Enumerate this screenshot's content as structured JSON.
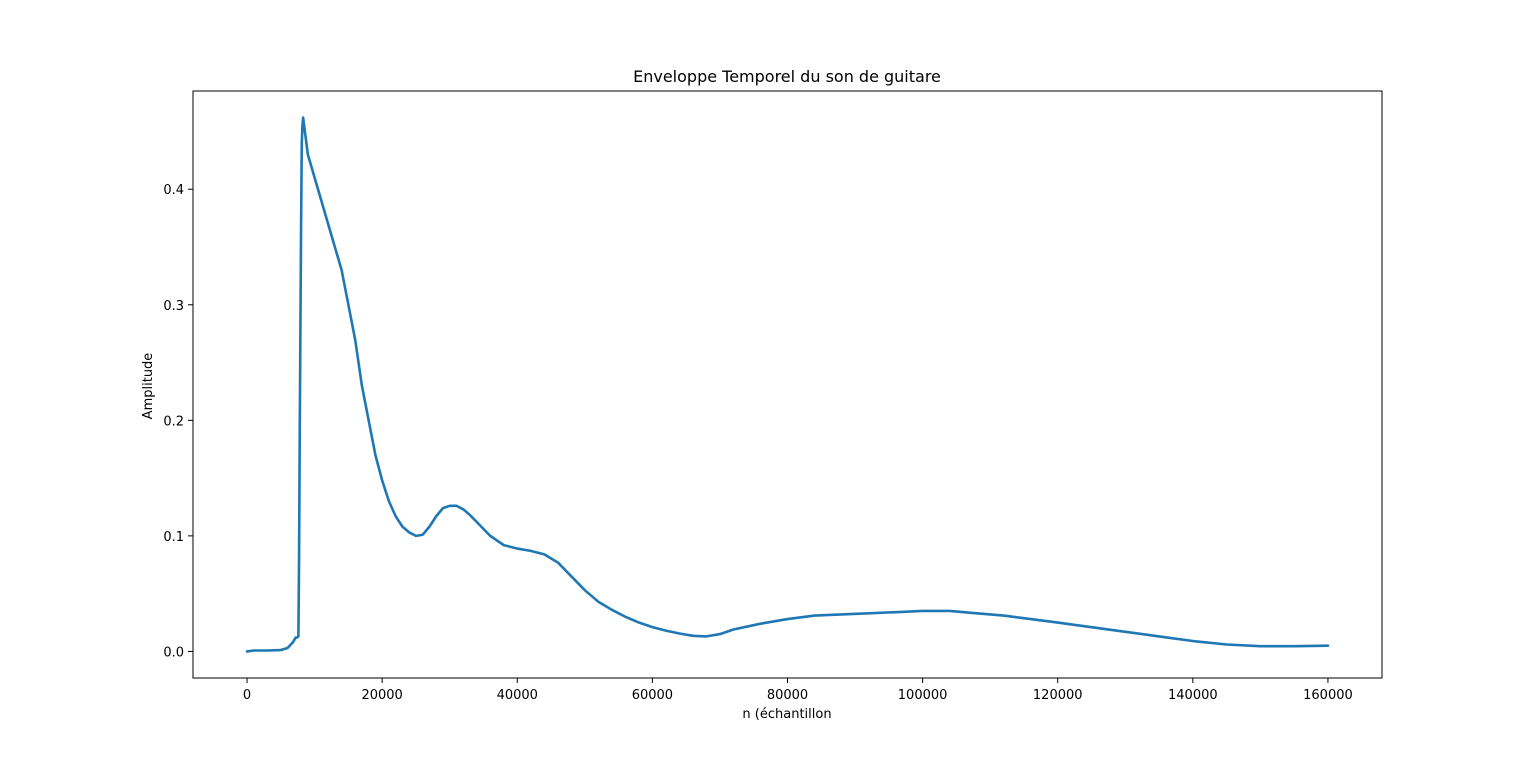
{
  "chart_data": {
    "type": "line",
    "title": "Enveloppe Temporel du son de guitare",
    "xlabel": "n (échantillon",
    "ylabel": "Amplitude",
    "xlim": [
      -8000,
      168000
    ],
    "ylim": [
      -0.023,
      0.485
    ],
    "xticks": [
      0,
      20000,
      40000,
      60000,
      80000,
      100000,
      120000,
      140000,
      160000
    ],
    "xtick_labels": [
      "0",
      "20000",
      "40000",
      "60000",
      "80000",
      "100000",
      "120000",
      "140000",
      "160000"
    ],
    "yticks": [
      0.0,
      0.1,
      0.2,
      0.3,
      0.4
    ],
    "ytick_labels": [
      "0.0",
      "0.1",
      "0.2",
      "0.3",
      "0.4"
    ],
    "grid": false,
    "series": [
      {
        "color": "#1f77b4",
        "x": [
          0,
          1000,
          3000,
          5000,
          6000,
          6800,
          7200,
          7400,
          7600,
          7700,
          7800,
          7900,
          8000,
          8100,
          8200,
          8300,
          9000,
          10000,
          12000,
          14000,
          15000,
          16000,
          17000,
          18000,
          19000,
          20000,
          21000,
          22000,
          23000,
          24000,
          25000,
          26000,
          27000,
          28000,
          29000,
          30000,
          31000,
          32000,
          33000,
          34000,
          36000,
          38000,
          40000,
          42000,
          44000,
          46000,
          48000,
          50000,
          52000,
          54000,
          56000,
          58000,
          60000,
          62000,
          64000,
          66000,
          68000,
          70000,
          72000,
          76000,
          80000,
          84000,
          88000,
          92000,
          96000,
          100000,
          104000,
          108000,
          112000,
          116000,
          120000,
          125000,
          130000,
          135000,
          140000,
          145000,
          150000,
          155000,
          160000
        ],
        "values": [
          0.0,
          0.0008,
          0.0008,
          0.0012,
          0.003,
          0.008,
          0.012,
          0.012,
          0.013,
          0.08,
          0.19,
          0.28,
          0.37,
          0.44,
          0.455,
          0.462,
          0.43,
          0.41,
          0.37,
          0.33,
          0.3,
          0.27,
          0.23,
          0.2,
          0.17,
          0.148,
          0.13,
          0.117,
          0.108,
          0.103,
          0.1,
          0.101,
          0.108,
          0.117,
          0.124,
          0.126,
          0.126,
          0.123,
          0.118,
          0.112,
          0.1,
          0.092,
          0.089,
          0.087,
          0.084,
          0.077,
          0.065,
          0.053,
          0.043,
          0.036,
          0.03,
          0.025,
          0.021,
          0.018,
          0.0155,
          0.0135,
          0.013,
          0.015,
          0.019,
          0.024,
          0.028,
          0.031,
          0.032,
          0.033,
          0.034,
          0.035,
          0.035,
          0.033,
          0.031,
          0.028,
          0.025,
          0.021,
          0.017,
          0.013,
          0.009,
          0.006,
          0.0045,
          0.0045,
          0.005
        ]
      }
    ]
  }
}
